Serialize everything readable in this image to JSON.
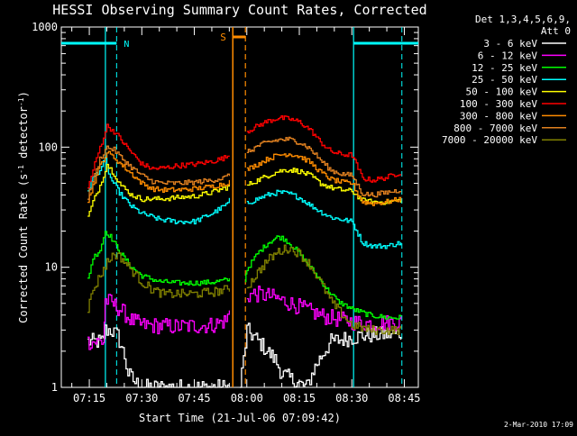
{
  "chart_data": {
    "type": "line",
    "title": "HESSI Observing Summary Count Rates, Corrected",
    "xlabel": "Start Time (21-Jul-06 07:09:42)",
    "ylabel_parts": {
      "a": "Corrected Count Rate (s",
      "sup1": "-1",
      "b": " detector",
      "sup2": "-1",
      "c": ")"
    },
    "y_scale": "log",
    "ylim": [
      1,
      1000
    ],
    "xlim_minutes": [
      7.0,
      49.0
    ],
    "ytick_labels": [
      "1",
      "10",
      "100",
      "1000"
    ],
    "xticks": [
      {
        "label": "07:15",
        "minute": 15
      },
      {
        "label": "07:30",
        "minute": 30
      },
      {
        "label": "07:45",
        "minute": 45
      },
      {
        "label": "08:00",
        "minute": 60
      },
      {
        "label": "08:15",
        "minute": 75
      },
      {
        "label": "08:30",
        "minute": 90
      },
      {
        "label": "08:45",
        "minute": 105
      }
    ],
    "legend_header": [
      "Det 1,3,4,5,6,9,",
      "Att 0"
    ],
    "legend_placement": "right",
    "series": [
      {
        "name": "3 - 6 keV",
        "color": "#ffffff",
        "points": [
          [
            14.5,
            2.4
          ],
          [
            19,
            2.4
          ],
          [
            19.5,
            3
          ],
          [
            21,
            3
          ],
          [
            23,
            2.7
          ],
          [
            25,
            1.8
          ],
          [
            26,
            1.3
          ],
          [
            28,
            1.1
          ],
          [
            30,
            1
          ],
          [
            55,
            1
          ],
          [
            58,
            1
          ],
          [
            60,
            3
          ],
          [
            64,
            2.3
          ],
          [
            68,
            1.7
          ],
          [
            70,
            1.3
          ],
          [
            74,
            1.1
          ],
          [
            77,
            1
          ],
          [
            79,
            1.4
          ],
          [
            82,
            2
          ],
          [
            84,
            2.4
          ],
          [
            87,
            2.5
          ],
          [
            90,
            2.6
          ],
          [
            93,
            2.7
          ],
          [
            104,
            2.8
          ]
        ]
      },
      {
        "name": "6 - 12 keV",
        "color": "#ff00ff",
        "points": [
          [
            14.5,
            2.4
          ],
          [
            19,
            2.4
          ],
          [
            19.5,
            5.3
          ],
          [
            21,
            5.1
          ],
          [
            24,
            4.4
          ],
          [
            27,
            3.6
          ],
          [
            30,
            3.3
          ],
          [
            40,
            3.2
          ],
          [
            50,
            3.3
          ],
          [
            54,
            3.6
          ],
          [
            55,
            4.2
          ],
          [
            60,
            5.8
          ],
          [
            62,
            6
          ],
          [
            66,
            5.8
          ],
          [
            70,
            5.3
          ],
          [
            74,
            4.8
          ],
          [
            78,
            4.3
          ],
          [
            82,
            3.9
          ],
          [
            86,
            3.7
          ],
          [
            90,
            3.5
          ],
          [
            95,
            3.4
          ],
          [
            104,
            3.5
          ]
        ]
      },
      {
        "name": "12 - 25 keV",
        "color": "#00ff00",
        "points": [
          [
            14.5,
            8
          ],
          [
            16,
            12
          ],
          [
            18,
            14
          ],
          [
            19.5,
            20
          ],
          [
            21,
            18
          ],
          [
            24,
            13
          ],
          [
            27,
            10
          ],
          [
            30,
            8.5
          ],
          [
            35,
            7.6
          ],
          [
            40,
            7.4
          ],
          [
            45,
            7.4
          ],
          [
            50,
            7.5
          ],
          [
            54,
            7.8
          ],
          [
            55,
            7.9
          ],
          [
            59.5,
            7.9
          ],
          [
            60,
            9.6
          ],
          [
            63,
            13
          ],
          [
            66,
            16
          ],
          [
            69,
            18
          ],
          [
            71,
            17
          ],
          [
            74,
            14
          ],
          [
            77,
            11
          ],
          [
            80,
            8.5
          ],
          [
            83,
            6.5
          ],
          [
            86,
            5.2
          ],
          [
            90,
            4.5
          ],
          [
            95,
            4
          ],
          [
            100,
            3.8
          ],
          [
            104,
            3.8
          ]
        ]
      },
      {
        "name": "25 - 50 keV",
        "color": "#00ffff",
        "points": [
          [
            14.5,
            44
          ],
          [
            16,
            55
          ],
          [
            18,
            65
          ],
          [
            19.5,
            78
          ],
          [
            21,
            55
          ],
          [
            24,
            40
          ],
          [
            27,
            32
          ],
          [
            30,
            28
          ],
          [
            35,
            25
          ],
          [
            40,
            24
          ],
          [
            45,
            24
          ],
          [
            50,
            28
          ],
          [
            54,
            33
          ],
          [
            55,
            36
          ],
          [
            60,
            34
          ],
          [
            63,
            37
          ],
          [
            66,
            40
          ],
          [
            69,
            42
          ],
          [
            72,
            41
          ],
          [
            75,
            38
          ],
          [
            78,
            33
          ],
          [
            81,
            29
          ],
          [
            84,
            26
          ],
          [
            87,
            25
          ],
          [
            90,
            24
          ],
          [
            93,
            16
          ],
          [
            96,
            15
          ],
          [
            100,
            15
          ],
          [
            104,
            16
          ]
        ]
      },
      {
        "name": "50 - 100 keV",
        "color": "#ffff00",
        "points": [
          [
            14.5,
            26
          ],
          [
            16,
            35
          ],
          [
            18,
            48
          ],
          [
            20,
            72
          ],
          [
            22,
            60
          ],
          [
            24,
            48
          ],
          [
            27,
            40
          ],
          [
            30,
            37
          ],
          [
            35,
            37
          ],
          [
            40,
            38
          ],
          [
            45,
            39
          ],
          [
            50,
            42
          ],
          [
            54,
            46
          ],
          [
            55,
            48
          ],
          [
            60,
            48
          ],
          [
            63,
            53
          ],
          [
            66,
            58
          ],
          [
            69,
            63
          ],
          [
            72,
            65
          ],
          [
            75,
            63
          ],
          [
            78,
            58
          ],
          [
            81,
            50
          ],
          [
            84,
            46
          ],
          [
            87,
            44
          ],
          [
            90,
            43
          ],
          [
            93,
            36
          ],
          [
            96,
            35
          ],
          [
            100,
            35
          ],
          [
            104,
            36
          ]
        ]
      },
      {
        "name": "100 - 300 keV",
        "color": "#ff0000",
        "points": [
          [
            14.5,
            45
          ],
          [
            16,
            65
          ],
          [
            18,
            100
          ],
          [
            20,
            150
          ],
          [
            22,
            135
          ],
          [
            24,
            115
          ],
          [
            27,
            90
          ],
          [
            30,
            72
          ],
          [
            33,
            66
          ],
          [
            36,
            67
          ],
          [
            40,
            70
          ],
          [
            45,
            72
          ],
          [
            50,
            76
          ],
          [
            54,
            82
          ],
          [
            55,
            88
          ],
          [
            60,
            135
          ],
          [
            63,
            150
          ],
          [
            66,
            165
          ],
          [
            69,
            175
          ],
          [
            72,
            172
          ],
          [
            75,
            162
          ],
          [
            78,
            140
          ],
          [
            81,
            110
          ],
          [
            84,
            92
          ],
          [
            87,
            87
          ],
          [
            90,
            86
          ],
          [
            93,
            55
          ],
          [
            96,
            53
          ],
          [
            100,
            56
          ],
          [
            104,
            62
          ]
        ]
      },
      {
        "name": "300 - 800 keV",
        "color": "#ff8c00",
        "points": [
          [
            14.5,
            35
          ],
          [
            16,
            48
          ],
          [
            18,
            70
          ],
          [
            20,
            90
          ],
          [
            22,
            82
          ],
          [
            24,
            72
          ],
          [
            27,
            60
          ],
          [
            30,
            50
          ],
          [
            33,
            45
          ],
          [
            36,
            44
          ],
          [
            40,
            44
          ],
          [
            45,
            45
          ],
          [
            50,
            47
          ],
          [
            54,
            50
          ],
          [
            55,
            52
          ],
          [
            60,
            65
          ],
          [
            63,
            72
          ],
          [
            66,
            80
          ],
          [
            69,
            86
          ],
          [
            72,
            88
          ],
          [
            75,
            84
          ],
          [
            78,
            75
          ],
          [
            81,
            62
          ],
          [
            84,
            54
          ],
          [
            87,
            51
          ],
          [
            90,
            50
          ],
          [
            93,
            35
          ],
          [
            96,
            34
          ],
          [
            100,
            35
          ],
          [
            104,
            37
          ]
        ]
      },
      {
        "name": "800 - 7000 keV",
        "color": "#e08020",
        "points": [
          [
            14.5,
            38
          ],
          [
            16,
            52
          ],
          [
            18,
            80
          ],
          [
            20,
            100
          ],
          [
            22,
            95
          ],
          [
            24,
            82
          ],
          [
            27,
            68
          ],
          [
            30,
            58
          ],
          [
            33,
            52
          ],
          [
            36,
            50
          ],
          [
            40,
            50
          ],
          [
            45,
            51
          ],
          [
            50,
            53
          ],
          [
            54,
            56
          ],
          [
            55,
            60
          ],
          [
            60,
            90
          ],
          [
            63,
            102
          ],
          [
            66,
            110
          ],
          [
            69,
            115
          ],
          [
            72,
            116
          ],
          [
            75,
            110
          ],
          [
            78,
            97
          ],
          [
            81,
            78
          ],
          [
            84,
            64
          ],
          [
            87,
            60
          ],
          [
            90,
            58
          ],
          [
            93,
            41
          ],
          [
            96,
            40
          ],
          [
            100,
            42
          ],
          [
            104,
            44
          ]
        ]
      },
      {
        "name": "7000 - 20000 keV",
        "color": "#808000",
        "points": [
          [
            14.5,
            4.5
          ],
          [
            16,
            6.5
          ],
          [
            18,
            8.5
          ],
          [
            20,
            11
          ],
          [
            22,
            13
          ],
          [
            24,
            12
          ],
          [
            27,
            9.5
          ],
          [
            30,
            7.5
          ],
          [
            33,
            6.5
          ],
          [
            36,
            6
          ],
          [
            40,
            6
          ],
          [
            45,
            6
          ],
          [
            50,
            6.2
          ],
          [
            54,
            6.5
          ],
          [
            55,
            6.7
          ],
          [
            60,
            6.8
          ],
          [
            63,
            9
          ],
          [
            66,
            11.5
          ],
          [
            69,
            13.5
          ],
          [
            72,
            14.5
          ],
          [
            75,
            13
          ],
          [
            78,
            10.5
          ],
          [
            81,
            7.5
          ],
          [
            84,
            5.2
          ],
          [
            87,
            4.1
          ],
          [
            90,
            3.3
          ],
          [
            95,
            3
          ],
          [
            100,
            3
          ],
          [
            104,
            3
          ]
        ]
      }
    ],
    "markers": {
      "night_label": "N",
      "saa_label": "S",
      "solid_cyan_x": [
        19.6,
        90.5
      ],
      "dashed_cyan_x": [
        22.8,
        104.3
      ],
      "solid_orange_x": [
        56.0
      ],
      "dashed_orange_x": [
        59.6
      ]
    },
    "grid": false
  },
  "timestamp": "2-Mar-2010 17:09"
}
